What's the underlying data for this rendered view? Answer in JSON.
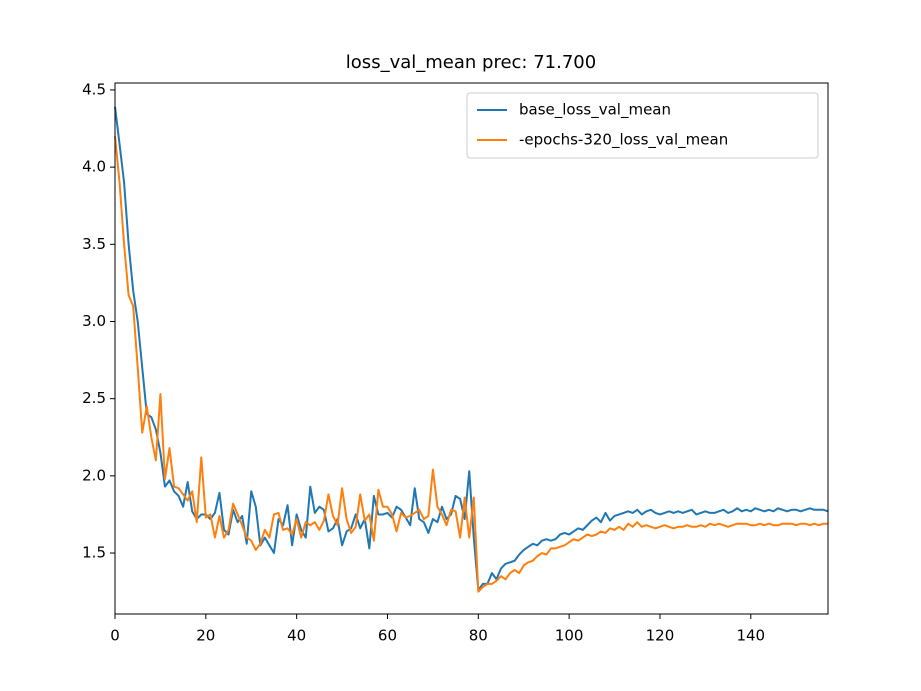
{
  "chart_data": {
    "type": "line",
    "title": "loss_val_mean prec: 71.700",
    "x": [
      0,
      1,
      2,
      3,
      4,
      5,
      6,
      7,
      8,
      9,
      10,
      11,
      12,
      13,
      14,
      15,
      16,
      17,
      18,
      19,
      20,
      21,
      22,
      23,
      24,
      25,
      26,
      27,
      28,
      29,
      30,
      31,
      32,
      33,
      34,
      35,
      36,
      37,
      38,
      39,
      40,
      41,
      42,
      43,
      44,
      45,
      46,
      47,
      48,
      49,
      50,
      51,
      52,
      53,
      54,
      55,
      56,
      57,
      58,
      59,
      60,
      61,
      62,
      63,
      64,
      65,
      66,
      67,
      68,
      69,
      70,
      71,
      72,
      73,
      74,
      75,
      76,
      77,
      78,
      79,
      80,
      81,
      82,
      83,
      84,
      85,
      86,
      87,
      88,
      89,
      90,
      91,
      92,
      93,
      94,
      95,
      96,
      97,
      98,
      99,
      100,
      101,
      102,
      103,
      104,
      105,
      106,
      107,
      108,
      109,
      110,
      111,
      112,
      113,
      114,
      115,
      116,
      117,
      118,
      119,
      120,
      121,
      122,
      123,
      124,
      125,
      126,
      127,
      128,
      129,
      130,
      131,
      132,
      133,
      134,
      135,
      136,
      137,
      138,
      139,
      140,
      141,
      142,
      143,
      144,
      145,
      146,
      147,
      148,
      149,
      150,
      151,
      152,
      153,
      154,
      155,
      156,
      157
    ],
    "series": [
      {
        "name": "base_loss_val_mean",
        "color": "#1f77b4",
        "values": [
          4.39,
          4.15,
          3.9,
          3.5,
          3.2,
          3.0,
          2.7,
          2.4,
          2.38,
          2.3,
          2.15,
          1.93,
          1.97,
          1.9,
          1.87,
          1.8,
          1.96,
          1.77,
          1.72,
          1.75,
          1.75,
          1.72,
          1.76,
          1.89,
          1.65,
          1.62,
          1.78,
          1.7,
          1.74,
          1.56,
          1.9,
          1.8,
          1.55,
          1.6,
          1.55,
          1.5,
          1.72,
          1.68,
          1.81,
          1.55,
          1.75,
          1.65,
          1.6,
          1.93,
          1.76,
          1.8,
          1.78,
          1.64,
          1.66,
          1.72,
          1.55,
          1.64,
          1.66,
          1.75,
          1.66,
          1.72,
          1.53,
          1.87,
          1.75,
          1.75,
          1.76,
          1.73,
          1.8,
          1.78,
          1.73,
          1.68,
          1.92,
          1.72,
          1.7,
          1.63,
          1.72,
          1.7,
          1.8,
          1.72,
          1.75,
          1.87,
          1.85,
          1.72,
          2.03,
          1.6,
          1.26,
          1.3,
          1.3,
          1.37,
          1.33,
          1.4,
          1.43,
          1.44,
          1.45,
          1.49,
          1.52,
          1.54,
          1.56,
          1.55,
          1.58,
          1.59,
          1.58,
          1.59,
          1.62,
          1.63,
          1.62,
          1.64,
          1.66,
          1.65,
          1.68,
          1.71,
          1.73,
          1.7,
          1.76,
          1.71,
          1.74,
          1.75,
          1.76,
          1.77,
          1.76,
          1.78,
          1.75,
          1.77,
          1.78,
          1.76,
          1.75,
          1.76,
          1.77,
          1.76,
          1.77,
          1.76,
          1.77,
          1.78,
          1.75,
          1.76,
          1.77,
          1.76,
          1.76,
          1.77,
          1.78,
          1.76,
          1.77,
          1.79,
          1.77,
          1.78,
          1.77,
          1.79,
          1.78,
          1.77,
          1.78,
          1.77,
          1.79,
          1.78,
          1.77,
          1.78,
          1.78,
          1.77,
          1.78,
          1.79,
          1.78,
          1.78,
          1.78,
          1.77
        ]
      },
      {
        "name": "-epochs-320_loss_val_mean",
        "color": "#ff7f0e",
        "values": [
          4.2,
          3.9,
          3.5,
          3.17,
          3.1,
          2.7,
          2.28,
          2.45,
          2.25,
          2.1,
          2.53,
          1.98,
          2.18,
          1.93,
          1.92,
          1.88,
          1.84,
          1.9,
          1.7,
          2.12,
          1.73,
          1.75,
          1.6,
          1.74,
          1.6,
          1.65,
          1.82,
          1.75,
          1.68,
          1.6,
          1.58,
          1.52,
          1.56,
          1.65,
          1.6,
          1.75,
          1.76,
          1.65,
          1.66,
          1.62,
          1.72,
          1.6,
          1.7,
          1.68,
          1.7,
          1.65,
          1.71,
          1.88,
          1.74,
          1.68,
          1.92,
          1.72,
          1.63,
          1.67,
          1.88,
          1.71,
          1.75,
          1.58,
          1.91,
          1.8,
          1.8,
          1.75,
          1.64,
          1.76,
          1.73,
          1.74,
          1.76,
          1.78,
          1.72,
          1.74,
          2.04,
          1.8,
          1.75,
          1.68,
          1.78,
          1.77,
          1.6,
          1.86,
          1.6,
          1.86,
          1.25,
          1.28,
          1.3,
          1.3,
          1.32,
          1.35,
          1.33,
          1.37,
          1.39,
          1.37,
          1.42,
          1.44,
          1.45,
          1.48,
          1.5,
          1.49,
          1.53,
          1.53,
          1.54,
          1.55,
          1.57,
          1.59,
          1.58,
          1.6,
          1.62,
          1.61,
          1.62,
          1.64,
          1.63,
          1.66,
          1.65,
          1.67,
          1.65,
          1.69,
          1.67,
          1.7,
          1.67,
          1.68,
          1.67,
          1.66,
          1.67,
          1.68,
          1.67,
          1.66,
          1.67,
          1.67,
          1.68,
          1.67,
          1.67,
          1.68,
          1.67,
          1.69,
          1.68,
          1.69,
          1.68,
          1.67,
          1.68,
          1.69,
          1.69,
          1.69,
          1.68,
          1.68,
          1.69,
          1.68,
          1.69,
          1.68,
          1.68,
          1.69,
          1.69,
          1.69,
          1.68,
          1.69,
          1.69,
          1.68,
          1.69,
          1.68,
          1.69,
          1.69
        ]
      }
    ],
    "xlim": [
      0,
      157
    ],
    "ylim": [
      1.105,
      4.545
    ],
    "xticks": [
      0,
      20,
      40,
      60,
      80,
      100,
      120,
      140
    ],
    "yticks": [
      1.5,
      {
        "value": 2,
        "label": "2.0"
      },
      2.5,
      {
        "value": 3,
        "label": "3.0"
      },
      3.5,
      {
        "value": 4,
        "label": "4.0"
      },
      4.5
    ],
    "legend": "upper right",
    "grid": false
  }
}
